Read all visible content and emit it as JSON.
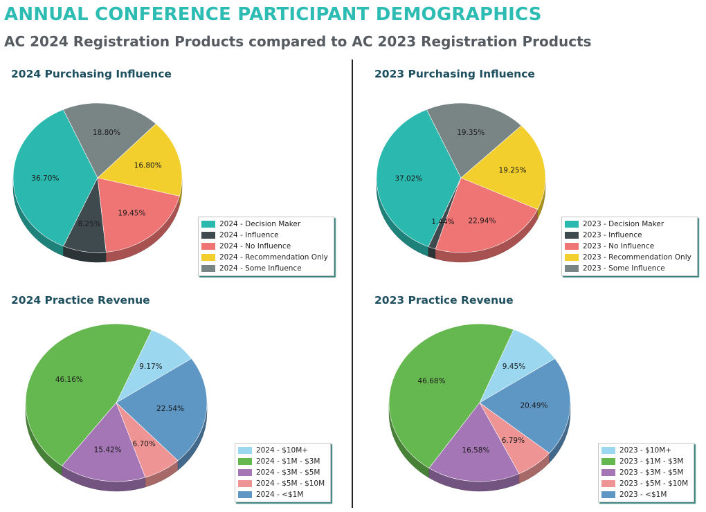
{
  "header": {
    "title": "ANNUAL CONFERENCE PARTICIPANT DEMOGRAPHICS",
    "subtitle": "AC 2024 Registration Products compared to AC 2023 Registration Products"
  },
  "chart_data": [
    {
      "type": "pie",
      "title": "2024 Purchasing Influence",
      "legend_position": "bottom-right",
      "slices": [
        {
          "label": "2024 - Decision Maker",
          "value": 36.7,
          "display": "36.70%",
          "color": "#2bb8ae"
        },
        {
          "label": "2024 - Influence",
          "value": 8.25,
          "display": "8.25%",
          "color": "#3f4a4f"
        },
        {
          "label": "2024 - No Influence",
          "value": 19.45,
          "display": "19.45%",
          "color": "#ef7474"
        },
        {
          "label": "2024 - Recommendation Only",
          "value": 16.8,
          "display": "16.80%",
          "color": "#f3cf2e"
        },
        {
          "label": "2024 - Some Influence",
          "value": 18.8,
          "display": "18.80%",
          "color": "#788584"
        }
      ]
    },
    {
      "type": "pie",
      "title": "2023 Purchasing Influence",
      "legend_position": "bottom-right",
      "slices": [
        {
          "label": "2023 - Decision Maker",
          "value": 37.02,
          "display": "37.02%",
          "color": "#2bb8ae"
        },
        {
          "label": "2023 - Influence",
          "value": 1.44,
          "display": "1.44%",
          "color": "#3f4a4f"
        },
        {
          "label": "2023 - No Influence",
          "value": 22.94,
          "display": "22.94%",
          "color": "#ef7474"
        },
        {
          "label": "2023 - Recommendation Only",
          "value": 19.25,
          "display": "19.25%",
          "color": "#f3cf2e"
        },
        {
          "label": "2023 - Some Influence",
          "value": 19.35,
          "display": "19.35%",
          "color": "#788584"
        }
      ]
    },
    {
      "type": "pie",
      "title": "2024 Practice Revenue",
      "legend_position": "bottom-right",
      "slices": [
        {
          "label": "2024 - $10M+",
          "value": 9.17,
          "display": "9.17%",
          "color": "#9cd7f0"
        },
        {
          "label": "2024 - $1M - $3M",
          "value": 46.16,
          "display": "46.16%",
          "color": "#65b74f"
        },
        {
          "label": "2024 - $3M - $5M",
          "value": 15.42,
          "display": "15.42%",
          "color": "#a476b5"
        },
        {
          "label": "2024 - $5M - $10M",
          "value": 6.7,
          "display": "6.70%",
          "color": "#ee9494"
        },
        {
          "label": "2024 - <$1M",
          "value": 22.54,
          "display": "22.54%",
          "color": "#5e96c4"
        }
      ]
    },
    {
      "type": "pie",
      "title": "2023 Practice Revenue",
      "legend_position": "bottom-right",
      "slices": [
        {
          "label": "2023 - $10M+",
          "value": 9.45,
          "display": "9.45%",
          "color": "#9cd7f0"
        },
        {
          "label": "2023 - $1M - $3M",
          "value": 46.68,
          "display": "46.68%",
          "color": "#65b74f"
        },
        {
          "label": "2023 - $3M - $5M",
          "value": 16.58,
          "display": "16.58%",
          "color": "#a476b5"
        },
        {
          "label": "2023 - $5M - $10M",
          "value": 6.79,
          "display": "6.79%",
          "color": "#ee9494"
        },
        {
          "label": "2023 - <$1M",
          "value": 20.49,
          "display": "20.49%",
          "color": "#5e96c4"
        }
      ]
    }
  ]
}
